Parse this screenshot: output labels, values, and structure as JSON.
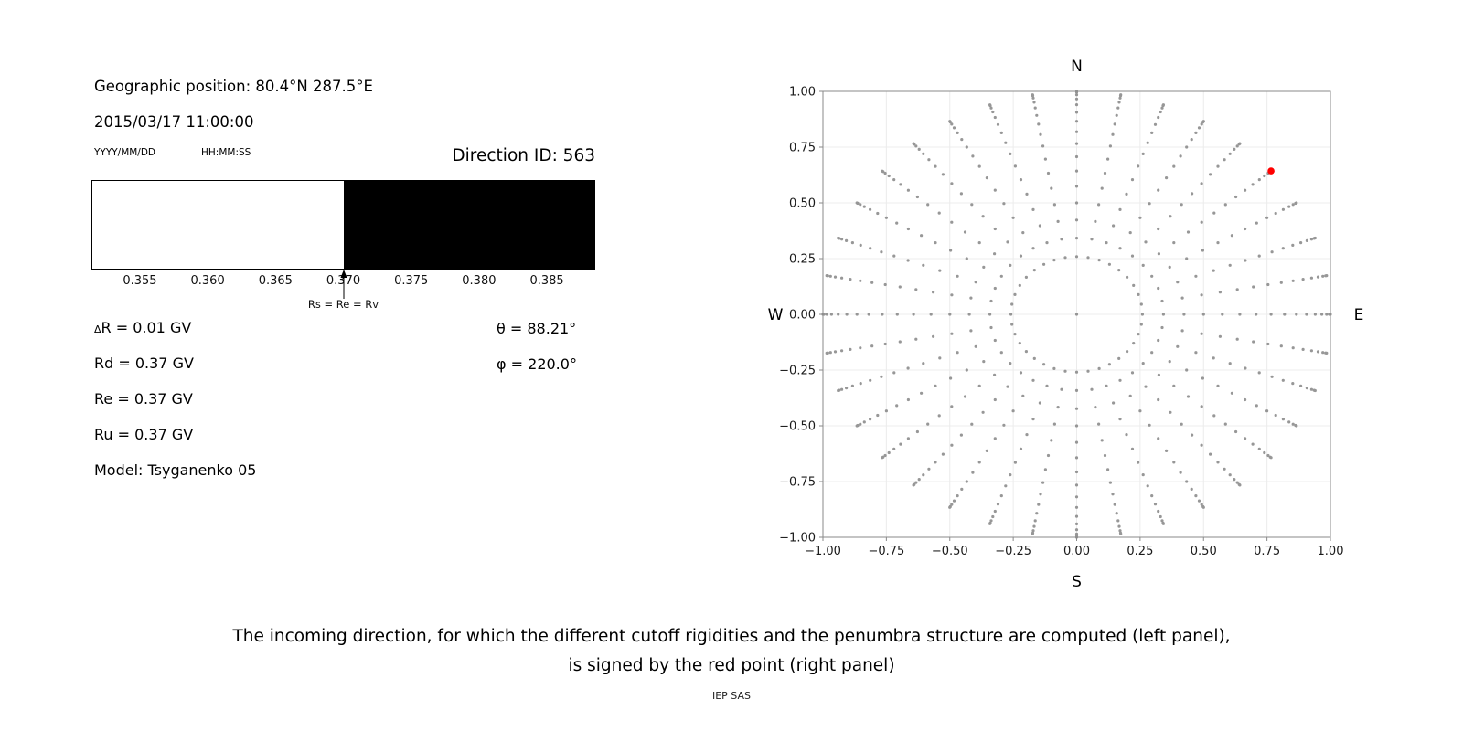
{
  "left_panel": {
    "geo_position": "Geographic position: 80.4°N 287.5°E",
    "datetime": "2015/03/17 11:00:00",
    "date_format_label": "YYYY/MM/DD",
    "time_format_label": "HH:MM:SS",
    "direction_id": "Direction ID: 563",
    "rigidity": {
      "delta_symbol": "Δ",
      "delta_rest": "R = 0.01 GV",
      "rd": "Rd = 0.37 GV",
      "re": "Re = 0.37 GV",
      "ru": "Ru = 0.37 GV",
      "model": "Model: Tsyganenko 05"
    },
    "theta": "θ = 88.21°",
    "phi": "φ = 220.0°"
  },
  "caption": {
    "line1": "The incoming direction, for which the different cutoff rigidities and the penumbra structure are computed (left panel),",
    "line2": "is signed by the red point (right panel)"
  },
  "credit": "IEP SAS",
  "chart_data": [
    {
      "type": "area",
      "xlabel_unit": "GV",
      "xlim": [
        0.3515,
        0.3885
      ],
      "xticks": [
        0.355,
        0.36,
        0.365,
        0.37,
        0.375,
        0.38,
        0.385
      ],
      "tick_decimals": 3,
      "regions": [
        {
          "from": 0.3515,
          "to": 0.37,
          "color": "#ffffff"
        },
        {
          "from": 0.37,
          "to": 0.3885,
          "color": "#000000"
        }
      ],
      "annotation": {
        "x": 0.37,
        "label": "Rs = Re = Rv"
      }
    },
    {
      "type": "scatter",
      "xlim": [
        -1.0,
        1.0
      ],
      "ylim": [
        -1.0,
        1.0
      ],
      "xticks": [
        -1.0,
        -0.75,
        -0.5,
        -0.25,
        0.0,
        0.25,
        0.5,
        0.75,
        1.0
      ],
      "yticks": [
        -1.0,
        -0.75,
        -0.5,
        -0.25,
        0.0,
        0.25,
        0.5,
        0.75,
        1.0
      ],
      "tick_decimals": 2,
      "grid": true,
      "compass": {
        "top": "N",
        "bottom": "S",
        "left": "W",
        "right": "E"
      },
      "grid_points": {
        "center": [
          0,
          0
        ],
        "ring_radius": 0.259,
        "azimuth_step_deg": 10,
        "spoke_radii": [
          0.342,
          0.423,
          0.5,
          0.574,
          0.643,
          0.707,
          0.766,
          0.819,
          0.866,
          0.906,
          0.94,
          0.966,
          0.985,
          0.996,
          1.0
        ]
      },
      "point_color": "#8c8c8c",
      "red_point": {
        "x": 0.766,
        "y": 0.643,
        "color": "#ff0000"
      }
    }
  ]
}
